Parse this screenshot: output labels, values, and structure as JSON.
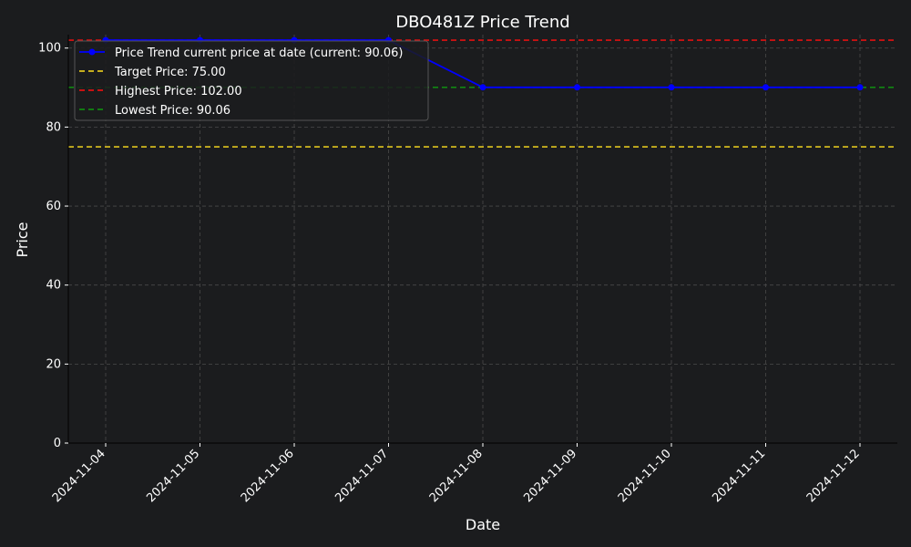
{
  "chart_data": {
    "type": "line",
    "title": "DBO481Z Price Trend",
    "xlabel": "Date",
    "ylabel": "Price",
    "ylim": [
      0,
      103.4
    ],
    "yticks": [
      0,
      20,
      40,
      60,
      80,
      100
    ],
    "grid": true,
    "legend_position": "top-left",
    "x": [
      "2024-11-04",
      "2024-11-05",
      "2024-11-06",
      "2024-11-07",
      "2024-11-08",
      "2024-11-09",
      "2024-11-10",
      "2024-11-11",
      "2024-11-12"
    ],
    "series": [
      {
        "name": "Price Trend current price at date (current: 90.06)",
        "values": [
          102.0,
          102.0,
          102.0,
          102.0,
          90.06,
          90.06,
          90.06,
          90.06,
          90.06
        ],
        "color": "#0000ff",
        "marker": "circle"
      }
    ],
    "reference_lines": [
      {
        "name": "Target Price: 75.00",
        "value": 75.0,
        "color": "#e0c41f"
      },
      {
        "name": "Highest Price: 102.00",
        "value": 102.0,
        "color": "#e01111"
      },
      {
        "name": "Lowest Price: 90.06",
        "value": 90.06,
        "color": "#118811"
      }
    ],
    "colors": {
      "background": "#1b1c1e",
      "text": "#ffffff",
      "grid": "#4a4a4a",
      "legend_bg": "#1b1c1e",
      "legend_border": "#555555"
    }
  }
}
